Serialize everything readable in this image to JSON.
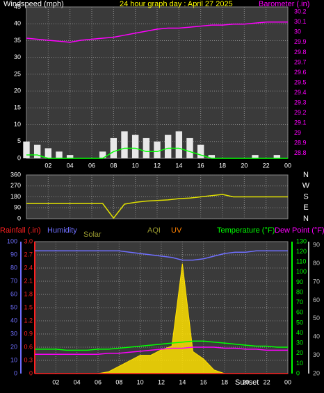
{
  "chart_data": [
    {
      "type": "line",
      "labels": [
        {
          "text": "Windspeed (mph)",
          "color": "#ffffff"
        },
        {
          "text": "24 hour graph day : April 27 2025",
          "color": "#ffff00"
        },
        {
          "text": "Barometer (.in)",
          "color": "#ff00ff"
        }
      ],
      "x": [
        0,
        1,
        2,
        3,
        4,
        5,
        6,
        7,
        8,
        9,
        10,
        11,
        12,
        13,
        14,
        15,
        16,
        17,
        18,
        19,
        20,
        21,
        22,
        23,
        24
      ],
      "xlim": [
        0,
        24
      ],
      "xticks": [
        {
          "value": 2,
          "label": "02"
        },
        {
          "value": 4,
          "label": "04"
        },
        {
          "value": 6,
          "label": "06"
        },
        {
          "value": 8,
          "label": "08"
        },
        10,
        12,
        14,
        16,
        18,
        20,
        22,
        {
          "value": 24,
          "label": "00"
        }
      ],
      "ylim": [
        0,
        45
      ],
      "yticks": [
        0,
        5,
        10,
        15,
        20,
        25,
        30,
        35,
        40,
        45
      ],
      "y2lim": [
        28.75,
        30.25
      ],
      "y2ticks": [
        28.8,
        28.9,
        29,
        29.1,
        29.2,
        29.3,
        29.4,
        29.5,
        29.6,
        29.7,
        29.8,
        29.9,
        30,
        30.1,
        30.2
      ],
      "axis_colors": {
        "y": "#ffffff",
        "y2": "#ff00ff"
      },
      "grid": true,
      "series": [
        {
          "style": "bar",
          "color": "#e8e8e8",
          "values": [
            5,
            4,
            3,
            2,
            1,
            0,
            0,
            2,
            6,
            8,
            7,
            6,
            5,
            7,
            8,
            6,
            4,
            1,
            0,
            0,
            0,
            1,
            0,
            1,
            0
          ]
        },
        {
          "style": "line",
          "color": "#00ff00",
          "values": [
            1,
            1,
            0,
            0,
            0,
            0,
            0,
            0,
            2,
            3,
            3,
            2,
            2,
            3,
            3,
            2,
            1,
            0,
            0,
            0,
            0,
            0,
            0,
            0,
            0
          ]
        },
        {
          "style": "line",
          "color": "#ff00ff",
          "axis": "y2",
          "values": [
            29.94,
            29.93,
            29.92,
            29.91,
            29.9,
            29.92,
            29.93,
            29.94,
            29.95,
            29.97,
            29.99,
            30.01,
            30.03,
            30.04,
            30.04,
            30.05,
            30.06,
            30.07,
            30.07,
            30.08,
            30.08,
            30.09,
            30.1,
            30.1,
            30.1
          ]
        }
      ]
    },
    {
      "type": "line",
      "labels": [],
      "x": [
        0,
        1,
        2,
        3,
        4,
        5,
        6,
        7,
        8,
        9,
        10,
        11,
        12,
        13,
        14,
        15,
        16,
        17,
        18,
        19,
        20,
        21,
        22,
        23,
        24
      ],
      "xlim": [
        0,
        24
      ],
      "xticks": [
        {
          "value": 2,
          "label": "02"
        },
        {
          "value": 4,
          "label": "04"
        },
        {
          "value": 6,
          "label": "06"
        },
        {
          "value": 8,
          "label": "08"
        },
        10,
        12,
        14,
        16,
        18,
        20,
        22,
        {
          "value": 24,
          "label": "00"
        }
      ],
      "ylim": [
        0,
        360
      ],
      "yticks": [
        0,
        90,
        180,
        270,
        360
      ],
      "y2lim": [
        0,
        360
      ],
      "y2ticks": [
        {
          "value": 0,
          "label": "N"
        },
        {
          "value": 90,
          "label": "E"
        },
        {
          "value": 180,
          "label": "S"
        },
        {
          "value": 270,
          "label": "W"
        },
        {
          "value": 360,
          "label": "N"
        }
      ],
      "axis_colors": {
        "y": "#ffffff",
        "y2": "#ffffff"
      },
      "grid": true,
      "series": [
        {
          "style": "line",
          "color": "#e0e000",
          "values": [
            125,
            125,
            125,
            125,
            125,
            125,
            125,
            125,
            5,
            120,
            135,
            145,
            150,
            155,
            165,
            170,
            180,
            190,
            200,
            180,
            180,
            180,
            180,
            180,
            180
          ]
        }
      ]
    },
    {
      "type": "line",
      "labels": [
        {
          "text": "Rainfall (.in)",
          "color": "#ff2020"
        },
        {
          "text": "Humidity",
          "color": "#6f6fff"
        },
        {
          "text": "Solar",
          "color": "#9a9a30"
        },
        {
          "text": "AQI",
          "color": "#9a9a30"
        },
        {
          "text": "UV",
          "color": "#ff8000"
        },
        {
          "text": "Temperature (°F)",
          "color": "#00ff00"
        },
        {
          "text": "Dew Point (°F)",
          "color": "#ff00ff"
        },
        {
          "text": "Sunset",
          "color": "#ffffff"
        }
      ],
      "x": [
        0,
        1,
        2,
        3,
        4,
        5,
        6,
        7,
        8,
        9,
        10,
        11,
        12,
        13,
        14,
        15,
        16,
        17,
        18,
        19,
        20,
        21,
        22,
        23,
        24
      ],
      "xlim": [
        0,
        24
      ],
      "xticks": [
        {
          "value": 2,
          "label": "02"
        },
        {
          "value": 4,
          "label": "04"
        },
        {
          "value": 6,
          "label": "06"
        },
        {
          "value": 8,
          "label": "08"
        },
        10,
        12,
        14,
        16,
        18,
        20,
        22,
        {
          "value": 24,
          "label": "00"
        }
      ],
      "ylim": [
        0,
        100
      ],
      "yticks": [
        0,
        10,
        20,
        30,
        40,
        50,
        60,
        70,
        80,
        90,
        100
      ],
      "y2lim": [
        0,
        3
      ],
      "y2ticks": [
        0,
        0.3,
        0.6,
        0.9,
        1.2,
        1.5,
        1.8,
        2.1,
        2.4,
        2.7,
        {
          "value": 3,
          "label": "3.0"
        }
      ],
      "y3lim": [
        0,
        130
      ],
      "y3ticks": [
        0,
        10,
        20,
        30,
        40,
        50,
        60,
        70,
        80,
        90,
        100,
        110,
        120,
        130
      ],
      "y4lim": [
        20,
        92
      ],
      "y4ticks": [
        20,
        30,
        40,
        50,
        60,
        70,
        80,
        90
      ],
      "axis_colors": {
        "y": "#6f6fff",
        "y2": "#ff2020",
        "y3": "#00ff00",
        "y4": "#c0c0c0"
      },
      "grid": true,
      "series": [
        {
          "style": "area",
          "color": "#ffe000",
          "axis": "y4",
          "values": [
            20,
            20,
            20,
            20,
            20,
            20,
            20,
            21,
            24,
            27,
            30,
            30,
            33,
            35,
            80,
            32,
            28,
            22,
            20,
            20,
            20,
            20,
            20,
            20,
            20
          ]
        },
        {
          "style": "line",
          "color": "#ff2020",
          "axis": "y2",
          "values": [
            0,
            0,
            0,
            0,
            0,
            0,
            0,
            0,
            0,
            0,
            0,
            0,
            0,
            0,
            0,
            0,
            0,
            0,
            0,
            0,
            0,
            0,
            0,
            0,
            0
          ]
        },
        {
          "style": "line",
          "color": "#6f6fff",
          "values": [
            93,
            93,
            93,
            93,
            93,
            93,
            93,
            93,
            93,
            92,
            91,
            90,
            89,
            88,
            86,
            86,
            87,
            89,
            91,
            92,
            92,
            93,
            93,
            93,
            93
          ]
        },
        {
          "style": "line",
          "color": "#00ff00",
          "axis": "y3",
          "values": [
            24,
            24,
            24,
            23,
            23,
            23,
            24,
            24,
            25,
            26,
            27,
            28,
            29,
            30,
            31,
            32,
            32,
            31,
            30,
            29,
            28,
            27,
            27,
            26,
            26
          ]
        },
        {
          "style": "line",
          "color": "#ff00ff",
          "axis": "y3",
          "values": [
            19,
            19,
            19,
            19,
            19,
            19,
            19,
            20,
            20,
            21,
            22,
            23,
            24,
            25,
            25,
            26,
            26,
            26,
            25,
            25,
            24,
            24,
            23,
            23,
            23
          ]
        }
      ]
    }
  ]
}
